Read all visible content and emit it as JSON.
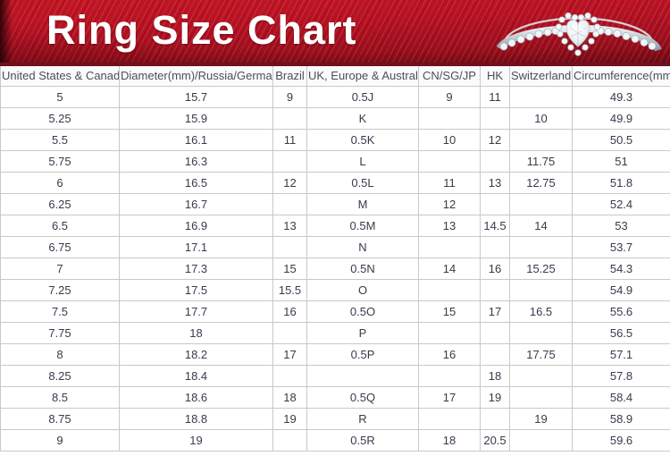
{
  "banner": {
    "title_label": "Ring Size Chart",
    "ring_photo": "heart-halo-diamond-ring"
  },
  "chart_data": {
    "type": "table",
    "title": "Ring Size Chart",
    "columns": [
      "United States & Canada",
      "Diameter(mm)/Russia/Germany",
      "Brazil",
      "UK, Europe & Australia",
      "CN/SG/JP",
      "HK",
      "Switzerland",
      "Circumference(mm)"
    ],
    "rows": [
      [
        "5",
        "15.7",
        "9",
        "0.5J",
        "9",
        "11",
        "",
        "49.3"
      ],
      [
        "5.25",
        "15.9",
        "",
        "K",
        "",
        "",
        "10",
        "49.9"
      ],
      [
        "5.5",
        "16.1",
        "11",
        "0.5K",
        "10",
        "12",
        "",
        "50.5"
      ],
      [
        "5.75",
        "16.3",
        "",
        "L",
        "",
        "",
        "11.75",
        "51"
      ],
      [
        "6",
        "16.5",
        "12",
        "0.5L",
        "11",
        "13",
        "12.75",
        "51.8"
      ],
      [
        "6.25",
        "16.7",
        "",
        "M",
        "12",
        "",
        "",
        "52.4"
      ],
      [
        "6.5",
        "16.9",
        "13",
        "0.5M",
        "13",
        "14.5",
        "14",
        "53"
      ],
      [
        "6.75",
        "17.1",
        "",
        "N",
        "",
        "",
        "",
        "53.7"
      ],
      [
        "7",
        "17.3",
        "15",
        "0.5N",
        "14",
        "16",
        "15.25",
        "54.3"
      ],
      [
        "7.25",
        "17.5",
        "15.5",
        "O",
        "",
        "",
        "",
        "54.9"
      ],
      [
        "7.5",
        "17.7",
        "16",
        "0.5O",
        "15",
        "17",
        "16.5",
        "55.6"
      ],
      [
        "7.75",
        "18",
        "",
        "P",
        "",
        "",
        "",
        "56.5"
      ],
      [
        "8",
        "18.2",
        "17",
        "0.5P",
        "16",
        "",
        "17.75",
        "57.1"
      ],
      [
        "8.25",
        "18.4",
        "",
        "",
        "",
        "18",
        "",
        "57.8"
      ],
      [
        "8.5",
        "18.6",
        "18",
        "0.5Q",
        "17",
        "19",
        "",
        "58.4"
      ],
      [
        "8.75",
        "18.8",
        "19",
        "R",
        "",
        "",
        "19",
        "58.9"
      ],
      [
        "9",
        "19",
        "",
        "0.5R",
        "18",
        "20.5",
        "",
        "59.6"
      ]
    ],
    "layout": {
      "grid": true,
      "header_position": "top",
      "rows_count": 17
    }
  },
  "colors": {
    "banner_red": "#b61021",
    "banner_dark_red": "#7c0a14",
    "divider_maroon": "#6e1120",
    "title_text": "#ffffff",
    "header_bg": "#fbfbfb",
    "header_text": "#4d4d5c",
    "cell_text": "#363c4c",
    "grid_line": "#c9c9c9"
  }
}
